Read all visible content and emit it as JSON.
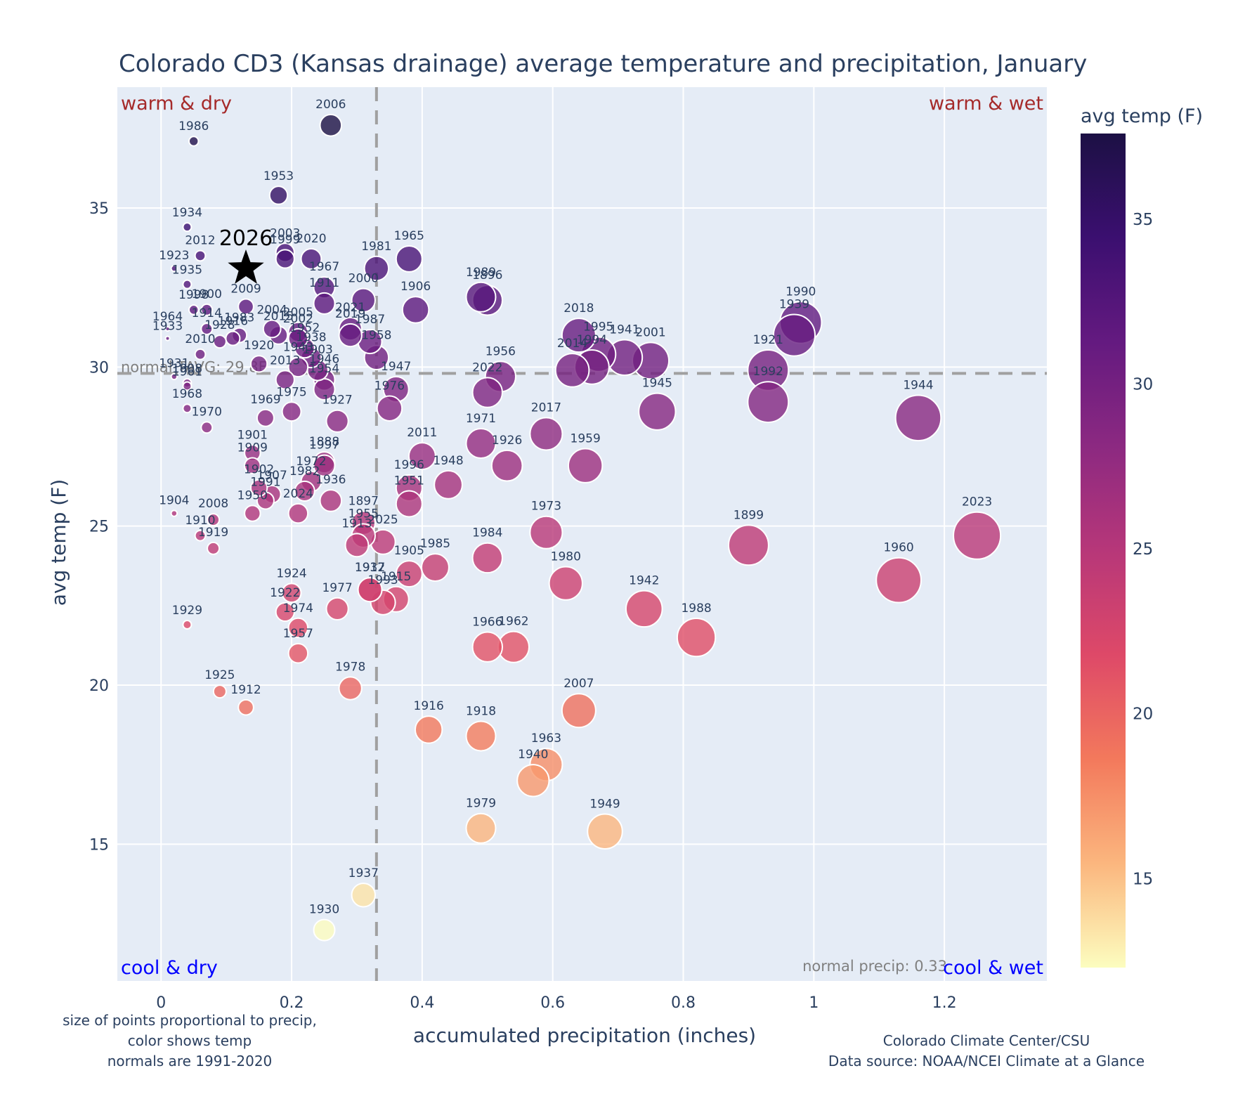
{
  "chart_data": {
    "type": "scatter",
    "title": "Colorado CD3 (Kansas drainage) average temperature and precipitation, January",
    "xlabel": "accumulated precipitation (inches)",
    "ylabel": "avg temp (F)",
    "xlim": [
      -0.067,
      1.357
    ],
    "ylim": [
      10.7,
      38.8
    ],
    "xticks": [
      0,
      0.2,
      0.4,
      0.6,
      0.8,
      1,
      1.2
    ],
    "xtick_labels": [
      "0",
      "0.2",
      "0.4",
      "0.6",
      "0.8",
      "1",
      "1.2"
    ],
    "yticks": [
      15,
      20,
      25,
      30,
      35
    ],
    "ytick_labels": [
      "15",
      "20",
      "25",
      "30",
      "35"
    ],
    "grid": true,
    "normal_temp": 29.8,
    "normal_temp_label": "normal TAVG: 29.8F",
    "normal_precip": 0.33,
    "normal_precip_label": "normal precip: 0.33",
    "quadrants": {
      "top_left": "warm & dry",
      "top_right": "warm & wet",
      "bottom_left": "cool & dry",
      "bottom_right": "cool & wet"
    },
    "colorbar": {
      "title": "avg temp (F)",
      "range": [
        12.3,
        37.6
      ],
      "ticks": [
        15,
        20,
        25,
        30,
        35
      ],
      "tick_labels": [
        "15",
        "20",
        "25",
        "30",
        "35"
      ],
      "colorscale": [
        "#fcfdbf",
        "#fbb67e",
        "#f3795c",
        "#de4968",
        "#b73779",
        "#8c2981",
        "#641a80",
        "#3b0f70",
        "#1c1044"
      ],
      "placement": "right"
    },
    "highlight": {
      "label": "2026",
      "x": 0.13,
      "y": 33.1,
      "marker": "star"
    },
    "points": [
      {
        "year": "2006",
        "x": 0.26,
        "y": 37.6
      },
      {
        "year": "1986",
        "x": 0.05,
        "y": 37.1
      },
      {
        "year": "1953",
        "x": 0.18,
        "y": 35.4
      },
      {
        "year": "1934",
        "x": 0.04,
        "y": 34.4
      },
      {
        "year": "2012",
        "x": 0.06,
        "y": 33.5
      },
      {
        "year": "2003",
        "x": 0.19,
        "y": 33.6
      },
      {
        "year": "1999",
        "x": 0.19,
        "y": 33.4
      },
      {
        "year": "2020",
        "x": 0.23,
        "y": 33.4
      },
      {
        "year": "1923",
        "x": 0.02,
        "y": 33.1
      },
      {
        "year": "1981",
        "x": 0.33,
        "y": 33.1
      },
      {
        "year": "1965",
        "x": 0.38,
        "y": 33.4
      },
      {
        "year": "1935",
        "x": 0.04,
        "y": 32.6
      },
      {
        "year": "1967",
        "x": 0.25,
        "y": 32.5
      },
      {
        "year": "1998",
        "x": 0.05,
        "y": 31.8
      },
      {
        "year": "1900",
        "x": 0.07,
        "y": 31.8
      },
      {
        "year": "2009",
        "x": 0.13,
        "y": 31.9
      },
      {
        "year": "1911",
        "x": 0.25,
        "y": 32.0
      },
      {
        "year": "2000",
        "x": 0.31,
        "y": 32.1
      },
      {
        "year": "1906",
        "x": 0.39,
        "y": 31.8
      },
      {
        "year": "1989",
        "x": 0.49,
        "y": 32.2
      },
      {
        "year": "1896",
        "x": 0.5,
        "y": 32.1
      },
      {
        "year": "1964",
        "x": 0.01,
        "y": 31.2
      },
      {
        "year": "1914",
        "x": 0.07,
        "y": 31.2
      },
      {
        "year": "1983",
        "x": 0.12,
        "y": 31.0
      },
      {
        "year": "1916",
        "x": 0.11,
        "y": 30.9
      },
      {
        "year": "1928",
        "x": 0.09,
        "y": 30.8
      },
      {
        "year": "2004",
        "x": 0.17,
        "y": 31.2
      },
      {
        "year": "2005",
        "x": 0.21,
        "y": 31.1
      },
      {
        "year": "2015",
        "x": 0.18,
        "y": 31.0
      },
      {
        "year": "2021",
        "x": 0.29,
        "y": 31.2
      },
      {
        "year": "2019",
        "x": 0.29,
        "y": 31.0
      },
      {
        "year": "1987",
        "x": 0.32,
        "y": 30.8
      },
      {
        "year": "2002",
        "x": 0.21,
        "y": 30.9
      },
      {
        "year": "1952",
        "x": 0.22,
        "y": 30.6
      },
      {
        "year": "1933",
        "x": 0.01,
        "y": 30.9
      },
      {
        "year": "2010",
        "x": 0.06,
        "y": 30.4
      },
      {
        "year": "1958",
        "x": 0.33,
        "y": 30.3
      },
      {
        "year": "1920",
        "x": 0.15,
        "y": 30.1
      },
      {
        "year": "1938",
        "x": 0.23,
        "y": 30.3
      },
      {
        "year": "1943",
        "x": 0.21,
        "y": 30.0
      },
      {
        "year": "1903",
        "x": 0.24,
        "y": 29.9
      },
      {
        "year": "1946",
        "x": 0.25,
        "y": 29.6
      },
      {
        "year": "1954",
        "x": 0.25,
        "y": 29.3
      },
      {
        "year": "1947",
        "x": 0.36,
        "y": 29.3
      },
      {
        "year": "1931",
        "x": 0.02,
        "y": 29.7
      },
      {
        "year": "1908",
        "x": 0.04,
        "y": 29.5
      },
      {
        "year": "2013",
        "x": 0.19,
        "y": 29.6
      },
      {
        "year": "1961",
        "x": 0.04,
        "y": 29.4
      },
      {
        "year": "1976",
        "x": 0.35,
        "y": 28.7
      },
      {
        "year": "1968",
        "x": 0.04,
        "y": 28.7
      },
      {
        "year": "1969",
        "x": 0.16,
        "y": 28.4
      },
      {
        "year": "1975",
        "x": 0.2,
        "y": 28.6
      },
      {
        "year": "1927",
        "x": 0.27,
        "y": 28.3
      },
      {
        "year": "1970",
        "x": 0.07,
        "y": 28.1
      },
      {
        "year": "2022",
        "x": 0.5,
        "y": 29.2
      },
      {
        "year": "1956",
        "x": 0.52,
        "y": 29.7
      },
      {
        "year": "2018",
        "x": 0.64,
        "y": 31.0
      },
      {
        "year": "2014",
        "x": 0.63,
        "y": 29.9
      },
      {
        "year": "1994",
        "x": 0.66,
        "y": 30.0
      },
      {
        "year": "1995",
        "x": 0.67,
        "y": 30.4
      },
      {
        "year": "1941",
        "x": 0.71,
        "y": 30.3
      },
      {
        "year": "2001",
        "x": 0.75,
        "y": 30.2
      },
      {
        "year": "1945",
        "x": 0.76,
        "y": 28.6
      },
      {
        "year": "1921",
        "x": 0.93,
        "y": 29.9
      },
      {
        "year": "1992",
        "x": 0.93,
        "y": 28.9
      },
      {
        "year": "1939",
        "x": 0.97,
        "y": 31.0
      },
      {
        "year": "1990",
        "x": 0.98,
        "y": 31.4
      },
      {
        "year": "1944",
        "x": 1.16,
        "y": 28.4
      },
      {
        "year": "2017",
        "x": 0.59,
        "y": 27.9
      },
      {
        "year": "1971",
        "x": 0.49,
        "y": 27.6
      },
      {
        "year": "1926",
        "x": 0.53,
        "y": 26.9
      },
      {
        "year": "1959",
        "x": 0.65,
        "y": 26.9
      },
      {
        "year": "2011",
        "x": 0.4,
        "y": 27.2
      },
      {
        "year": "1948",
        "x": 0.44,
        "y": 26.3
      },
      {
        "year": "1996",
        "x": 0.38,
        "y": 26.2
      },
      {
        "year": "1951",
        "x": 0.38,
        "y": 25.7
      },
      {
        "year": "1901",
        "x": 0.14,
        "y": 27.3
      },
      {
        "year": "1909",
        "x": 0.14,
        "y": 26.9
      },
      {
        "year": "1888",
        "x": 0.25,
        "y": 27.0
      },
      {
        "year": "1997",
        "x": 0.25,
        "y": 26.9
      },
      {
        "year": "1972",
        "x": 0.23,
        "y": 26.4
      },
      {
        "year": "1902",
        "x": 0.15,
        "y": 26.2
      },
      {
        "year": "1907",
        "x": 0.17,
        "y": 26.0
      },
      {
        "year": "1982",
        "x": 0.22,
        "y": 26.1
      },
      {
        "year": "1991",
        "x": 0.16,
        "y": 25.8
      },
      {
        "year": "1936",
        "x": 0.26,
        "y": 25.8
      },
      {
        "year": "1950",
        "x": 0.14,
        "y": 25.4
      },
      {
        "year": "2024",
        "x": 0.21,
        "y": 25.4
      },
      {
        "year": "1904",
        "x": 0.02,
        "y": 25.4
      },
      {
        "year": "2008",
        "x": 0.08,
        "y": 25.2
      },
      {
        "year": "1910",
        "x": 0.06,
        "y": 24.7
      },
      {
        "year": "1919",
        "x": 0.08,
        "y": 24.3
      },
      {
        "year": "1897",
        "x": 0.31,
        "y": 25.1
      },
      {
        "year": "1955",
        "x": 0.31,
        "y": 24.7
      },
      {
        "year": "1913",
        "x": 0.3,
        "y": 24.4
      },
      {
        "year": "2025",
        "x": 0.34,
        "y": 24.5
      },
      {
        "year": "1905",
        "x": 0.38,
        "y": 23.5
      },
      {
        "year": "1985",
        "x": 0.42,
        "y": 23.7
      },
      {
        "year": "1973",
        "x": 0.59,
        "y": 24.8
      },
      {
        "year": "1984",
        "x": 0.5,
        "y": 24.0
      },
      {
        "year": "1980",
        "x": 0.62,
        "y": 23.2
      },
      {
        "year": "1899",
        "x": 0.9,
        "y": 24.4
      },
      {
        "year": "2023",
        "x": 1.25,
        "y": 24.7
      },
      {
        "year": "1960",
        "x": 1.13,
        "y": 23.3
      },
      {
        "year": "1942",
        "x": 0.74,
        "y": 22.4
      },
      {
        "year": "1988",
        "x": 0.82,
        "y": 21.5
      },
      {
        "year": "1932",
        "x": 0.32,
        "y": 23.0
      },
      {
        "year": "1917",
        "x": 0.32,
        "y": 23.0
      },
      {
        "year": "1993",
        "x": 0.34,
        "y": 22.6
      },
      {
        "year": "1915",
        "x": 0.36,
        "y": 22.7
      },
      {
        "year": "1924",
        "x": 0.2,
        "y": 22.9
      },
      {
        "year": "1922",
        "x": 0.19,
        "y": 22.3
      },
      {
        "year": "1977",
        "x": 0.27,
        "y": 22.4
      },
      {
        "year": "1974",
        "x": 0.21,
        "y": 21.8
      },
      {
        "year": "1957",
        "x": 0.21,
        "y": 21.0
      },
      {
        "year": "1929",
        "x": 0.04,
        "y": 21.9
      },
      {
        "year": "1966",
        "x": 0.5,
        "y": 21.2
      },
      {
        "year": "1962",
        "x": 0.54,
        "y": 21.2
      },
      {
        "year": "1978",
        "x": 0.29,
        "y": 19.9
      },
      {
        "year": "1925",
        "x": 0.09,
        "y": 19.8
      },
      {
        "year": "1912",
        "x": 0.13,
        "y": 19.3
      },
      {
        "year": "2007",
        "x": 0.64,
        "y": 19.2
      },
      {
        "year": "1916b",
        "x": 0.41,
        "y": 18.6
      },
      {
        "year": "1918",
        "x": 0.49,
        "y": 18.4
      },
      {
        "year": "1963",
        "x": 0.59,
        "y": 17.5
      },
      {
        "year": "1940",
        "x": 0.57,
        "y": 17.0
      },
      {
        "year": "1979",
        "x": 0.49,
        "y": 15.5
      },
      {
        "year": "1949",
        "x": 0.68,
        "y": 15.4
      },
      {
        "year": "1937",
        "x": 0.31,
        "y": 13.4
      },
      {
        "year": "1930",
        "x": 0.25,
        "y": 12.3
      }
    ],
    "annotations": {
      "left_note": [
        "size of points proportional to precip,",
        "color shows temp",
        "normals are 1991-2020"
      ],
      "right_note": [
        "Colorado Climate Center/CSU",
        "Data source: NOAA/NCEI Climate at a Glance"
      ]
    }
  }
}
